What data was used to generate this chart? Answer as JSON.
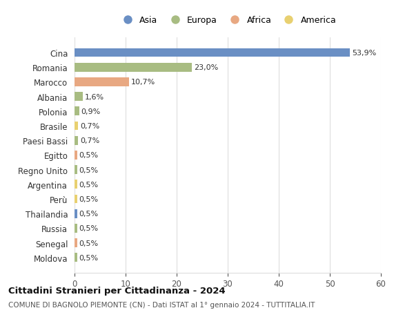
{
  "countries": [
    "Cina",
    "Romania",
    "Marocco",
    "Albania",
    "Polonia",
    "Brasile",
    "Paesi Bassi",
    "Egitto",
    "Regno Unito",
    "Argentina",
    "Perù",
    "Thailandia",
    "Russia",
    "Senegal",
    "Moldova"
  ],
  "values": [
    53.9,
    23.0,
    10.7,
    1.6,
    0.9,
    0.7,
    0.7,
    0.5,
    0.5,
    0.5,
    0.5,
    0.5,
    0.5,
    0.5,
    0.5
  ],
  "labels": [
    "53,9%",
    "23,0%",
    "10,7%",
    "1,6%",
    "0,9%",
    "0,7%",
    "0,7%",
    "0,5%",
    "0,5%",
    "0,5%",
    "0,5%",
    "0,5%",
    "0,5%",
    "0,5%",
    "0,5%"
  ],
  "continents": [
    "Asia",
    "Europa",
    "Africa",
    "Europa",
    "Europa",
    "America",
    "Europa",
    "Africa",
    "Europa",
    "America",
    "America",
    "Asia",
    "Europa",
    "Africa",
    "Europa"
  ],
  "continent_colors": {
    "Asia": "#6a8fc4",
    "Europa": "#a8bc82",
    "Africa": "#e8a882",
    "America": "#e8d070"
  },
  "legend_entries": [
    "Asia",
    "Europa",
    "Africa",
    "America"
  ],
  "legend_colors": [
    "#6a8fc4",
    "#a8bc82",
    "#e8a882",
    "#e8d070"
  ],
  "xlim": [
    0,
    60
  ],
  "xticks": [
    0,
    10,
    20,
    30,
    40,
    50,
    60
  ],
  "title": "Cittadini Stranieri per Cittadinanza - 2024",
  "subtitle": "COMUNE DI BAGNOLO PIEMONTE (CN) - Dati ISTAT al 1° gennaio 2024 - TUTTITALIA.IT",
  "background_color": "#ffffff",
  "grid_color": "#dddddd"
}
